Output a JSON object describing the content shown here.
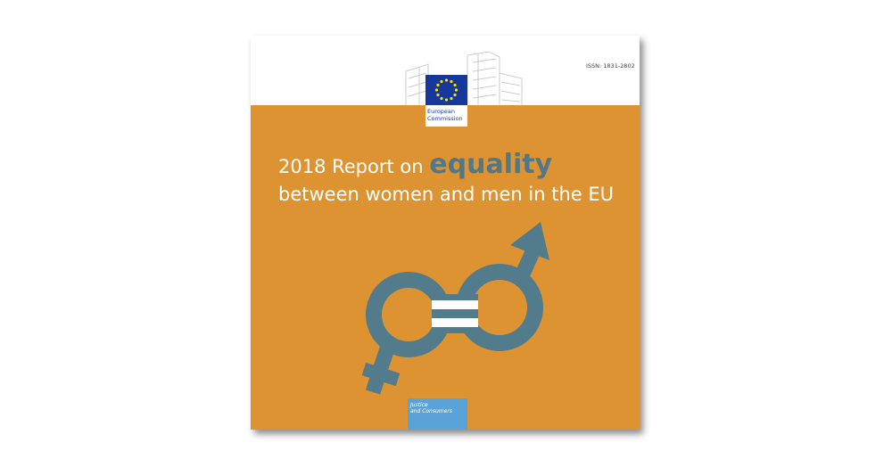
{
  "header": {
    "issn": "ISSN: 1831-2802"
  },
  "logo": {
    "line1": "European",
    "line2": "Commission"
  },
  "title": {
    "prefix": "2018 Report on",
    "emphasis": "equality",
    "line2": "between women and men in the EU"
  },
  "footer": {
    "line1": "Justice",
    "line2": "and Consumers"
  }
}
